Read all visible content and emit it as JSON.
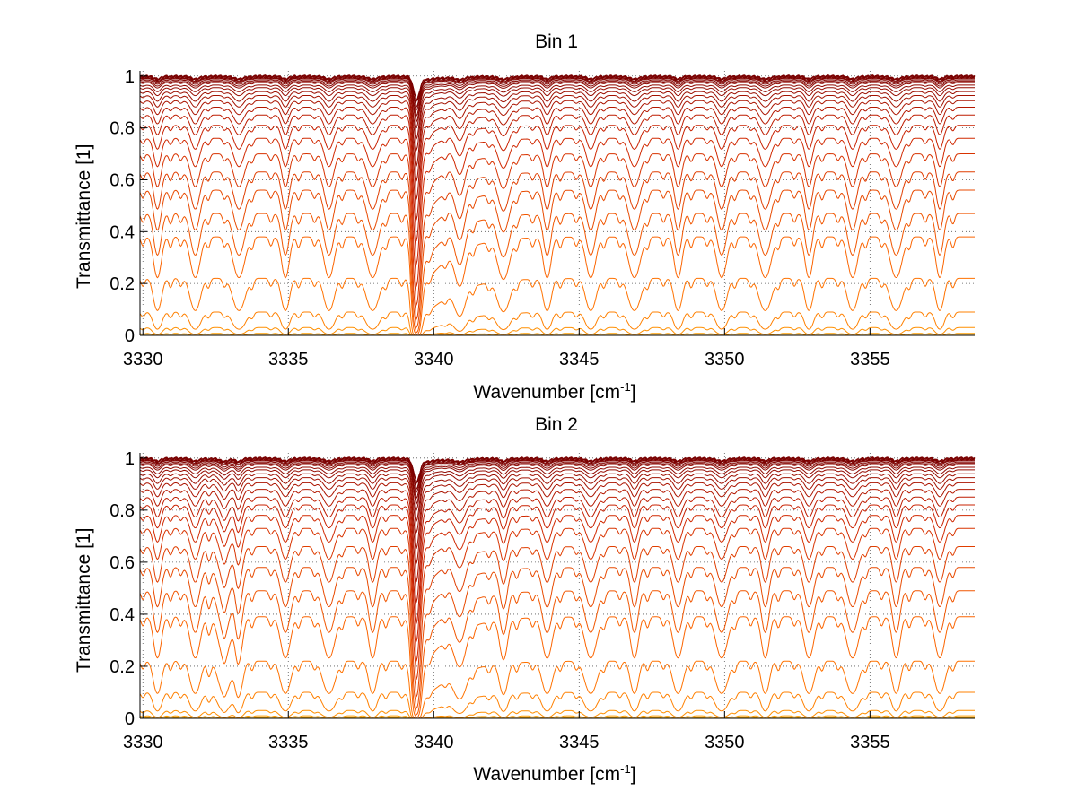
{
  "figure": {
    "panels": [
      {
        "title": "Bin 1",
        "xlabel_main": "Wavenumber [cm",
        "xlabel_sup": "-1",
        "xlabel_end": "]",
        "ylabel": "Transmittance [1]"
      },
      {
        "title": "Bin 2",
        "xlabel_main": "Wavenumber [cm",
        "xlabel_sup": "-1",
        "xlabel_end": "]",
        "ylabel": "Transmittance [1]"
      }
    ]
  },
  "chart_data": [
    {
      "type": "line",
      "title": "Bin 1",
      "xlabel": "Wavenumber [cm-1]",
      "ylabel": "Transmittance [1]",
      "xlim": [
        3329.9,
        3358.6
      ],
      "ylim": [
        0,
        1.02
      ],
      "xticks": [
        3330,
        3335,
        3340,
        3345,
        3350,
        3355
      ],
      "yticks": [
        0,
        0.2,
        0.4,
        0.6,
        0.8,
        1
      ],
      "ytick_labels": [
        "0",
        "0.2",
        "0.4",
        "0.6",
        "0.8",
        "1"
      ],
      "grid": "dotted",
      "series_count": 28,
      "series_baseline_levels": [
        1.0,
        0.999,
        0.998,
        0.996,
        0.993,
        0.99,
        0.985,
        0.98,
        0.975,
        0.965,
        0.955,
        0.94,
        0.925,
        0.905,
        0.88,
        0.85,
        0.81,
        0.76,
        0.7,
        0.63,
        0.56,
        0.47,
        0.38,
        0.22,
        0.09,
        0.03,
        0.008,
        0.001
      ],
      "absorption_line_centers": [
        3330.5,
        3331.8,
        3333.3,
        3334.9,
        3336.4,
        3337.9,
        3339.4,
        3340.9,
        3342.4,
        3343.9,
        3345.4,
        3346.9,
        3348.4,
        3349.9,
        3351.4,
        3352.9,
        3354.4,
        3355.9,
        3357.4
      ],
      "strong_line": 3339.4,
      "colors": [
        "#7a0000",
        "#cc2200",
        "#ff6a00",
        "#ffb000"
      ]
    },
    {
      "type": "line",
      "title": "Bin 2",
      "xlabel": "Wavenumber [cm-1]",
      "ylabel": "Transmittance [1]",
      "xlim": [
        3329.9,
        3358.6
      ],
      "ylim": [
        0,
        1.02
      ],
      "xticks": [
        3330,
        3335,
        3340,
        3345,
        3350,
        3355
      ],
      "yticks": [
        0,
        0.2,
        0.4,
        0.6,
        0.8,
        1
      ],
      "ytick_labels": [
        "0",
        "0.2",
        "0.4",
        "0.6",
        "0.8",
        "1"
      ],
      "grid": "dotted",
      "series_count": 28,
      "series_baseline_levels": [
        1.0,
        0.999,
        0.998,
        0.996,
        0.993,
        0.99,
        0.985,
        0.98,
        0.975,
        0.965,
        0.955,
        0.94,
        0.925,
        0.905,
        0.88,
        0.85,
        0.82,
        0.78,
        0.73,
        0.66,
        0.58,
        0.49,
        0.39,
        0.22,
        0.1,
        0.03,
        0.01,
        0.002
      ],
      "absorption_line_centers": [
        3330.5,
        3331.8,
        3332.8,
        3333.3,
        3334.9,
        3336.4,
        3337.9,
        3339.4,
        3340.9,
        3342.4,
        3343.9,
        3345.4,
        3346.9,
        3348.4,
        3349.9,
        3351.4,
        3352.9,
        3354.4,
        3355.9,
        3357.4
      ],
      "strong_line": 3339.4,
      "colors": [
        "#7a0000",
        "#cc2200",
        "#ff6a00",
        "#ffb000"
      ]
    }
  ]
}
